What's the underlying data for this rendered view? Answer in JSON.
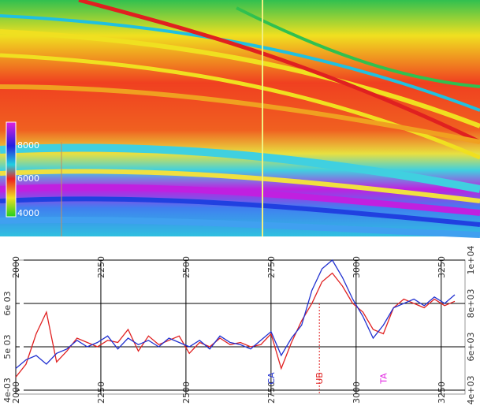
{
  "seismic": {
    "colorbar_labels": [
      "8000",
      "6000",
      "4000"
    ]
  },
  "chart_data": {
    "type": "line",
    "x": [
      2000,
      2030,
      2060,
      2090,
      2120,
      2150,
      2180,
      2210,
      2240,
      2270,
      2300,
      2330,
      2360,
      2390,
      2420,
      2450,
      2480,
      2510,
      2540,
      2570,
      2600,
      2630,
      2660,
      2690,
      2720,
      2750,
      2780,
      2810,
      2840,
      2870,
      2900,
      2930,
      2960,
      2990,
      3020,
      3050,
      3080,
      3110,
      3140,
      3170,
      3200,
      3230,
      3260,
      3290
    ],
    "series": [
      {
        "color": "#e02020",
        "values": [
          4600,
          5200,
          6600,
          7600,
          5300,
          5800,
          6400,
          6200,
          6000,
          6300,
          6200,
          6800,
          5800,
          6500,
          6100,
          6300,
          6500,
          5700,
          6200,
          6000,
          6400,
          6100,
          6200,
          6000,
          6100,
          6600,
          5000,
          6200,
          7200,
          8000,
          9000,
          9400,
          8800,
          8000,
          7600,
          6800,
          6600,
          7800,
          8200,
          8000,
          7800,
          8200,
          7900,
          8100
        ]
      },
      {
        "color": "#2030d0",
        "values": [
          5000,
          5400,
          5600,
          5200,
          5700,
          5900,
          6300,
          6000,
          6200,
          6500,
          5900,
          6400,
          6100,
          6300,
          6000,
          6400,
          6200,
          6000,
          6300,
          5900,
          6500,
          6200,
          6100,
          5900,
          6300,
          6700,
          5600,
          6400,
          7000,
          8600,
          9600,
          10000,
          9200,
          8200,
          7400,
          6400,
          7000,
          7800,
          8000,
          8200,
          7900,
          8300,
          8000,
          8400
        ]
      }
    ],
    "xlim": [
      2000,
      3320
    ],
    "xticks": [
      2000,
      2250,
      2500,
      2750,
      3000,
      3250
    ],
    "ylim": [
      4000,
      10000
    ],
    "yticks": [
      {
        "value": 4000,
        "label": "4e+03"
      },
      {
        "value": 6000,
        "label": "6e+03"
      },
      {
        "value": 8000,
        "label": "8e+03"
      },
      {
        "value": 10000,
        "label": "1e+04"
      }
    ],
    "y2lim": [
      0.004,
      0.007
    ],
    "y2ticks": [
      {
        "value": 0.004,
        "label": "4e-03"
      },
      {
        "value": 0.005,
        "label": "5e 03"
      },
      {
        "value": 0.006,
        "label": "6e 03"
      }
    ],
    "annotations": [
      {
        "text": "CA",
        "x": 2750,
        "color": "#2030d0"
      },
      {
        "text": "UB",
        "x": 2892,
        "color": "#e02020"
      },
      {
        "text": "TA",
        "x": 3080,
        "color": "#e020e0"
      }
    ],
    "grid": true
  }
}
